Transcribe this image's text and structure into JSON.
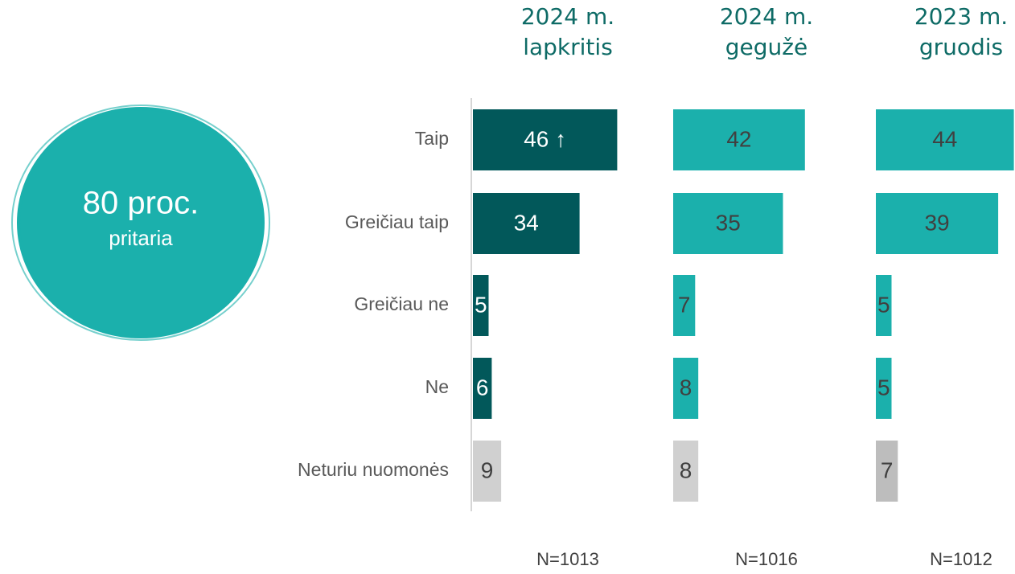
{
  "highlight": {
    "text": "80 proc.",
    "caption": "pritaria"
  },
  "chart_data": [
    {
      "type": "hbar",
      "title": "2024 m.\nlapkritis",
      "note": "N=1013",
      "categories": [
        "Taip",
        "Greičiau taip",
        "Greičiau ne",
        "Ne",
        "Neturiu nuomonės"
      ],
      "values": [
        46,
        34,
        5,
        6,
        9
      ],
      "value_labels": [
        "46 ↑",
        "34",
        "5",
        "6",
        "9"
      ],
      "colors": [
        "#02585a",
        "#02585a",
        "#02585a",
        "#02585a",
        "#d0d0d0"
      ]
    },
    {
      "type": "hbar",
      "title": "2024 m.\ngegužė",
      "note": "N=1016",
      "values": [
        42,
        35,
        7,
        8,
        8
      ],
      "colors": [
        "#1bb0ac",
        "#1bb0ac",
        "#1bb0ac",
        "#1bb0ac",
        "#d0d0d0"
      ]
    },
    {
      "type": "hbar",
      "title": "2023 m.\ngruodis",
      "note": "N=1012",
      "values": [
        44,
        39,
        5,
        5,
        7
      ],
      "colors": [
        "#1bb0ac",
        "#1bb0ac",
        "#1bb0ac",
        "#1bb0ac",
        "#bdbdbd"
      ]
    }
  ]
}
